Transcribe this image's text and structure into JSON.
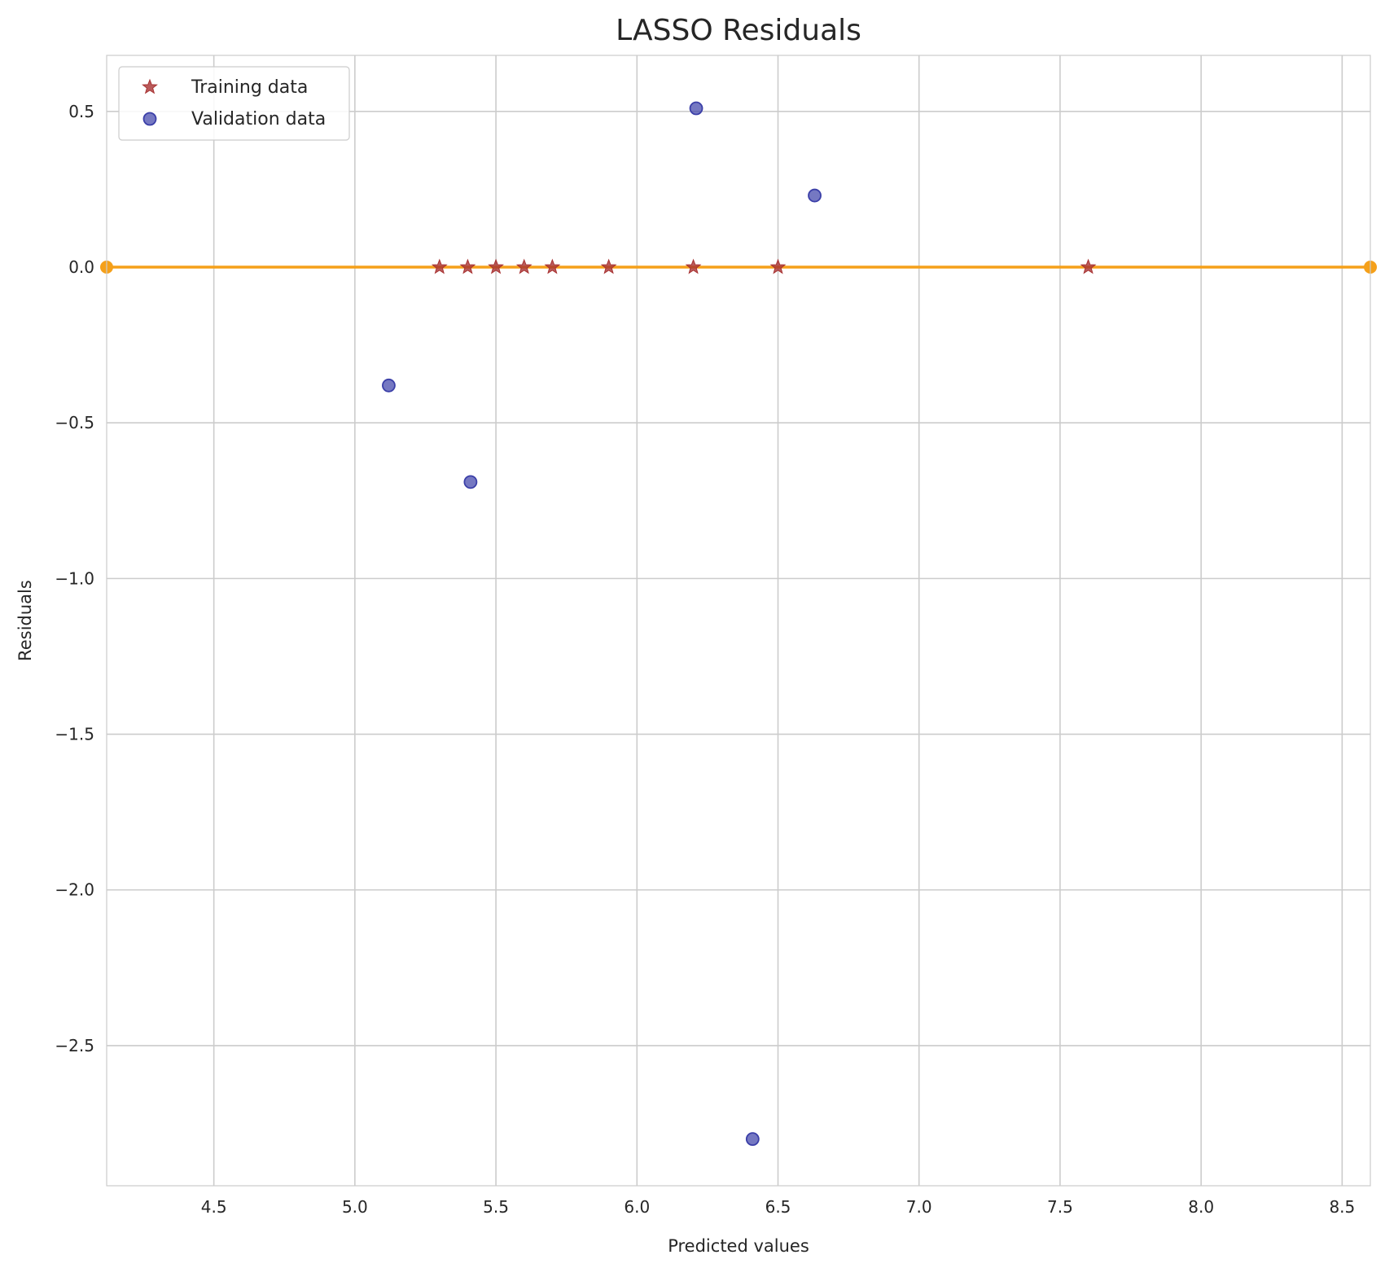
{
  "chart_data": {
    "type": "scatter",
    "title": "LASSO Residuals",
    "xlabel": "Predicted values",
    "ylabel": "Residuals",
    "xlim": [
      4.12,
      8.6
    ],
    "ylim": [
      -2.95,
      0.68
    ],
    "xticks": [
      4.5,
      5.0,
      5.5,
      6.0,
      6.5,
      7.0,
      7.5,
      8.0,
      8.5
    ],
    "xtick_labels": [
      "4.5",
      "5.0",
      "5.5",
      "6.0",
      "6.5",
      "7.0",
      "7.5",
      "8.0",
      "8.5"
    ],
    "yticks": [
      0.5,
      0.0,
      -0.5,
      -1.0,
      -1.5,
      -2.0,
      -2.5
    ],
    "ytick_labels": [
      "0.5",
      "0.0",
      "−0.5",
      "−1.0",
      "−1.5",
      "−2.0",
      "−2.5"
    ],
    "grid": true,
    "legend_position": "top-left",
    "series": [
      {
        "name": "Training data",
        "marker": "star",
        "color": "#a83232",
        "x": [
          5.3,
          5.4,
          5.5,
          5.6,
          5.7,
          5.9,
          6.2,
          6.5,
          7.6
        ],
        "y": [
          0.0,
          0.0,
          0.0,
          0.0,
          0.0,
          0.0,
          0.0,
          0.0,
          0.0
        ]
      },
      {
        "name": "Validation data",
        "marker": "circle",
        "color": "#3b3fa8",
        "x": [
          5.12,
          5.41,
          6.21,
          6.41,
          6.63
        ],
        "y": [
          -0.38,
          -0.69,
          0.51,
          -2.8,
          0.23
        ]
      }
    ],
    "reference_line": {
      "color": "#f5a01a",
      "y": 0.0,
      "x": [
        4.12,
        8.6
      ]
    }
  }
}
